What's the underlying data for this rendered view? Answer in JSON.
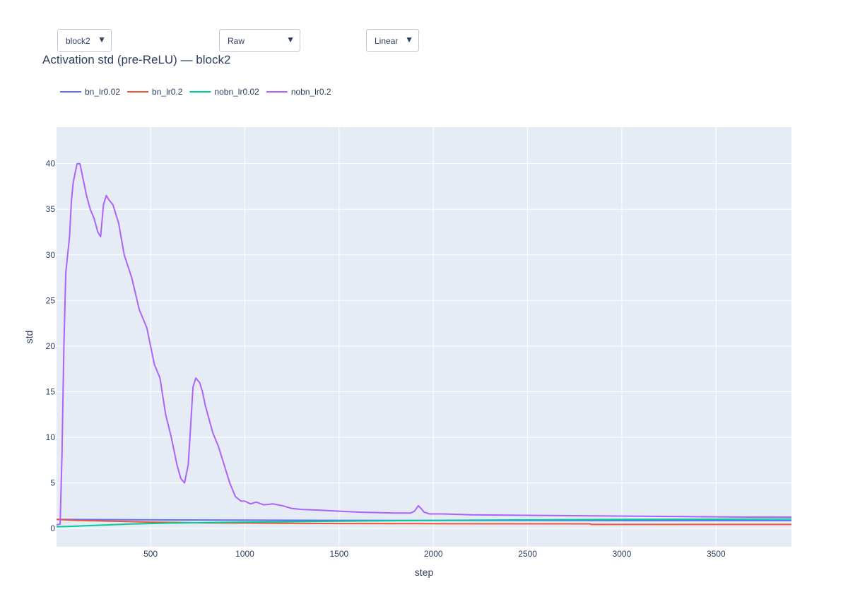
{
  "controls": {
    "block_select": {
      "value": "block2",
      "arrow": "▼"
    },
    "mode_select": {
      "value": "Raw",
      "arrow": "▼"
    },
    "scale_select": {
      "value": "Linear",
      "arrow": "▼"
    }
  },
  "chart_data": {
    "type": "line",
    "title": "Activation std (pre-ReLU) — block2",
    "xlabel": "step",
    "ylabel": "std",
    "xlim": [
      1,
      3900
    ],
    "ylim": [
      -2,
      44
    ],
    "xticks": [
      500,
      1000,
      1500,
      2000,
      2500,
      3000,
      3500
    ],
    "yticks": [
      0,
      5,
      10,
      15,
      20,
      25,
      30,
      35,
      40
    ],
    "grid": true,
    "legend_position": "top-left, horizontal",
    "series": [
      {
        "name": "bn_lr0.02",
        "color": "#636efa",
        "x": [
          1,
          200,
          500,
          1000,
          1500,
          2000,
          2500,
          3000,
          3500,
          3900
        ],
        "y": [
          1.0,
          0.98,
          0.95,
          0.92,
          0.9,
          0.88,
          0.88,
          0.87,
          0.87,
          0.87
        ]
      },
      {
        "name": "bn_lr0.2",
        "color": "#ef553b",
        "x": [
          1,
          100,
          300,
          500,
          800,
          1000,
          1500,
          2000,
          2500,
          2830,
          2840,
          3200,
          3900
        ],
        "y": [
          1.0,
          0.9,
          0.8,
          0.7,
          0.62,
          0.6,
          0.55,
          0.53,
          0.52,
          0.52,
          0.45,
          0.45,
          0.45
        ]
      },
      {
        "name": "nobn_lr0.02",
        "color": "#00cc96",
        "x": [
          1,
          100,
          200,
          400,
          600,
          800,
          1000,
          1500,
          2000,
          2500,
          3000,
          3500,
          3900
        ],
        "y": [
          0.2,
          0.25,
          0.35,
          0.5,
          0.6,
          0.65,
          0.7,
          0.8,
          0.9,
          0.95,
          1.0,
          1.02,
          1.05
        ]
      },
      {
        "name": "nobn_lr0.2",
        "color": "#ab63fa",
        "x": [
          1,
          20,
          30,
          40,
          50,
          60,
          70,
          80,
          90,
          110,
          125,
          140,
          160,
          180,
          200,
          220,
          235,
          250,
          265,
          280,
          300,
          330,
          360,
          400,
          440,
          480,
          500,
          520,
          550,
          580,
          610,
          640,
          660,
          680,
          700,
          715,
          725,
          740,
          760,
          775,
          790,
          810,
          830,
          860,
          890,
          920,
          950,
          980,
          1000,
          1030,
          1060,
          1100,
          1150,
          1200,
          1250,
          1300,
          1400,
          1500,
          1600,
          1700,
          1800,
          1880,
          1900,
          1920,
          1935,
          1950,
          1980,
          2050,
          2200,
          2500,
          2800,
          3100,
          3400,
          3700,
          3900
        ],
        "y": [
          0.4,
          0.5,
          8,
          20,
          28,
          30,
          32,
          36,
          38,
          40,
          40,
          38.5,
          36.5,
          35,
          34,
          32.5,
          32,
          35.5,
          36.5,
          36,
          35.5,
          33.5,
          30,
          27.5,
          24,
          22,
          20,
          18,
          16.5,
          12.5,
          10,
          7,
          5.5,
          5,
          7,
          12,
          15.5,
          16.5,
          16,
          15,
          13.5,
          12,
          10.5,
          9,
          7,
          5,
          3.5,
          3,
          3,
          2.7,
          2.9,
          2.6,
          2.7,
          2.5,
          2.2,
          2.1,
          2.0,
          1.9,
          1.8,
          1.75,
          1.7,
          1.7,
          1.9,
          2.5,
          2.2,
          1.8,
          1.6,
          1.6,
          1.5,
          1.45,
          1.4,
          1.35,
          1.3,
          1.25,
          1.25
        ]
      }
    ]
  }
}
